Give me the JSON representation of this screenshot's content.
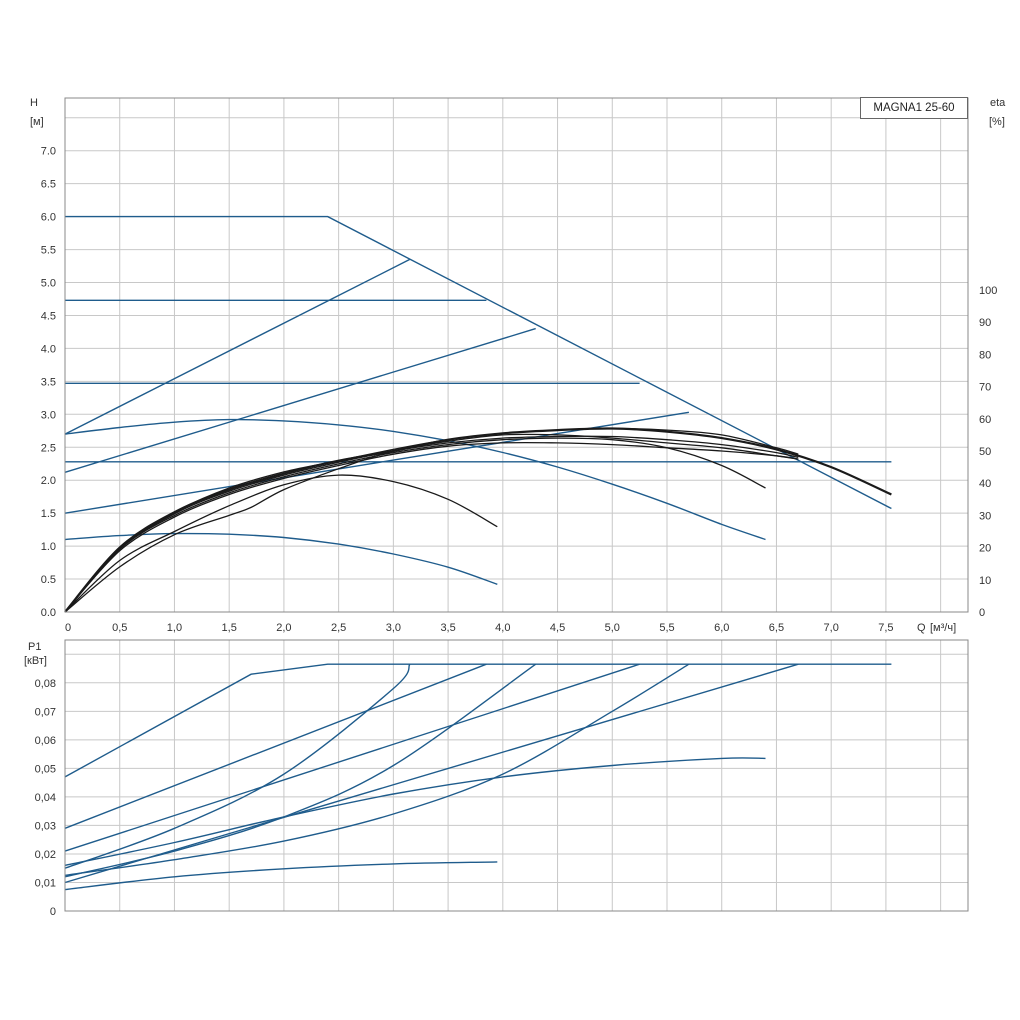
{
  "title": "MAGNA1 25-60",
  "colors": {
    "curve_blue": "#1f5c8c",
    "curve_black": "#1a1a1a",
    "grid": "#c8c8c8",
    "frame": "#888888"
  },
  "chart_data": [
    {
      "type": "line",
      "panel": "head_efficiency",
      "ylabel": "H",
      "yunit": "[м]",
      "y2label": "eta",
      "y2unit": "[%]",
      "xlabel": "Q",
      "xunit": "[м³/ч]",
      "xlim": [
        0,
        8.25
      ],
      "ylim": [
        0,
        7.8
      ],
      "y2lim": [
        0,
        100
      ],
      "x_ticks": [
        "0",
        "0,5",
        "1,0",
        "1,5",
        "2,0",
        "2,5",
        "3,0",
        "3,5",
        "4,0",
        "4,5",
        "5,0",
        "5,5",
        "6,0",
        "6,5",
        "7,0",
        "7,5"
      ],
      "y_ticks": [
        "0.0",
        "0.5",
        "1.0",
        "1.5",
        "2.0",
        "2.5",
        "3.0",
        "3.5",
        "4.0",
        "4.5",
        "5.0",
        "5.5",
        "6.0",
        "6.5",
        "7.0"
      ],
      "y2_ticks": [
        "0",
        "10",
        "20",
        "30",
        "40",
        "50",
        "60",
        "70",
        "80",
        "90",
        "100"
      ],
      "grid": true,
      "head_series": [
        {
          "x": [
            0,
            2.4,
            7.55
          ],
          "y": [
            6.0,
            6.0,
            1.57
          ]
        },
        {
          "x": [
            0,
            3.85
          ],
          "y": [
            4.73,
            4.73
          ]
        },
        {
          "x": [
            0,
            5.25
          ],
          "y": [
            3.47,
            3.47
          ]
        },
        {
          "x": [
            0,
            7.55
          ],
          "y": [
            2.28,
            2.28
          ]
        },
        {
          "x": [
            0,
            3.15
          ],
          "y": [
            2.7,
            5.35
          ]
        },
        {
          "x": [
            0,
            4.3
          ],
          "y": [
            2.12,
            4.3
          ]
        },
        {
          "x": [
            0,
            5.7
          ],
          "y": [
            1.5,
            3.03
          ]
        },
        {
          "x": [
            0,
            0.5,
            1.0,
            1.5,
            2.0,
            2.5,
            3.0,
            3.5,
            4.0,
            4.5,
            5.0,
            5.5,
            6.0,
            6.4
          ],
          "y": [
            2.7,
            2.8,
            2.88,
            2.92,
            2.9,
            2.84,
            2.74,
            2.6,
            2.42,
            2.2,
            1.94,
            1.65,
            1.33,
            1.1
          ]
        },
        {
          "x": [
            0,
            0.5,
            1.0,
            1.5,
            2.0,
            2.5,
            3.0,
            3.5,
            3.95
          ],
          "y": [
            1.1,
            1.16,
            1.19,
            1.18,
            1.13,
            1.03,
            0.88,
            0.68,
            0.42
          ]
        }
      ],
      "efficiency_series": [
        {
          "x": [
            0,
            0.5,
            1.0,
            1.5,
            2.0,
            2.5,
            3.0,
            3.5,
            4.0,
            4.5,
            5.0,
            5.5,
            6.0,
            6.5,
            7.0,
            7.55
          ],
          "y": [
            0,
            20,
            31,
            38,
            43,
            47,
            50,
            53.5,
            55.5,
            56.5,
            57,
            56,
            54,
            50.5,
            45,
            36.5
          ]
        },
        {
          "x": [
            0,
            0.5,
            1.0,
            1.5,
            2.0,
            2.5,
            3.0,
            3.5,
            4.0,
            4.5,
            5.0,
            5.5,
            6.0,
            6.4
          ],
          "y": [
            0,
            19.5,
            30,
            37,
            42,
            46,
            49.5,
            52,
            53.5,
            54,
            53.5,
            51,
            45.5,
            38.5
          ]
        },
        {
          "x": [
            0,
            0.5,
            1.0,
            1.5,
            2.0,
            2.5,
            3.0,
            3.5,
            3.95
          ],
          "y": [
            0,
            16,
            25,
            33,
            39.5,
            42.5,
            40.5,
            35,
            26.5
          ]
        },
        {
          "x": [
            0,
            0.5,
            1.0,
            1.5,
            1.7,
            2.0,
            2.5,
            3.0,
            3.5,
            4.0,
            4.5,
            5.0,
            5.5,
            6.0,
            6.5,
            6.7
          ],
          "y": [
            0,
            14,
            24,
            30,
            32.5,
            38,
            44.5,
            50,
            53,
            55,
            55,
            54,
            52.5,
            51,
            48.5,
            47.5
          ]
        },
        {
          "x": [
            0,
            0.5,
            1.0,
            1.5,
            2.0,
            2.5,
            3.0,
            3.5,
            4.0,
            4.5,
            5.0,
            5.5,
            6.0,
            6.5,
            6.7
          ],
          "y": [
            0,
            19,
            29.5,
            36.5,
            41.5,
            45.5,
            49,
            51.5,
            52.5,
            52.5,
            52,
            51,
            50,
            48.5,
            47.5
          ]
        },
        {
          "x": [
            0,
            0.5,
            1.0,
            1.5,
            2.0,
            2.5,
            3.0,
            3.5,
            4.0,
            4.5,
            5.0,
            5.5,
            6.0,
            6.5,
            6.7
          ],
          "y": [
            0,
            19.5,
            30.5,
            37.5,
            42.5,
            46.5,
            50,
            52.5,
            54,
            54.5,
            54.5,
            53.5,
            52,
            49.5,
            48
          ]
        },
        {
          "x": [
            0,
            0.5,
            1.0,
            1.5,
            2.0,
            2.5,
            3.0,
            3.5,
            4.0,
            4.5,
            5.0,
            5.5,
            6.0,
            6.5,
            6.7
          ],
          "y": [
            0,
            20,
            31,
            38.5,
            43.5,
            47,
            50.5,
            53.5,
            55.5,
            56.5,
            57,
            56.5,
            55,
            51,
            49
          ]
        }
      ]
    },
    {
      "type": "line",
      "panel": "power",
      "ylabel": "P1",
      "yunit": "[кВт]",
      "xlim": [
        0,
        8.25
      ],
      "ylim": [
        0,
        0.095
      ],
      "y_ticks": [
        "0",
        "0,01",
        "0,02",
        "0,03",
        "0,04",
        "0,05",
        "0,06",
        "0,07",
        "0,08"
      ],
      "grid": true,
      "series": [
        {
          "x": [
            0,
            1.7,
            2.4,
            7.55
          ],
          "y": [
            0.047,
            0.083,
            0.0865,
            0.0865
          ]
        },
        {
          "x": [
            0,
            3.85
          ],
          "y": [
            0.029,
            0.0865
          ]
        },
        {
          "x": [
            0,
            5.25
          ],
          "y": [
            0.021,
            0.0865
          ]
        },
        {
          "x": [
            0,
            6.7
          ],
          "y": [
            0.01,
            0.0865
          ]
        },
        {
          "x": [
            0,
            1.0,
            2.0,
            3.0,
            3.15
          ],
          "y": [
            0.015,
            0.029,
            0.048,
            0.078,
            0.0865
          ]
        },
        {
          "x": [
            0,
            1.0,
            2.0,
            3.0,
            4.3
          ],
          "y": [
            0.012,
            0.021,
            0.033,
            0.051,
            0.0865
          ]
        },
        {
          "x": [
            0,
            1.0,
            2.0,
            3.0,
            4.0,
            5.0,
            5.7
          ],
          "y": [
            0.0125,
            0.018,
            0.0245,
            0.034,
            0.048,
            0.07,
            0.0865
          ]
        },
        {
          "x": [
            0,
            1.0,
            2.0,
            3.0,
            4.0,
            5.0,
            6.0,
            6.4
          ],
          "y": [
            0.016,
            0.024,
            0.033,
            0.041,
            0.047,
            0.051,
            0.0535,
            0.0535
          ]
        },
        {
          "x": [
            0,
            1.0,
            2.0,
            3.0,
            3.95
          ],
          "y": [
            0.0075,
            0.012,
            0.0148,
            0.0165,
            0.0172
          ]
        }
      ]
    }
  ]
}
